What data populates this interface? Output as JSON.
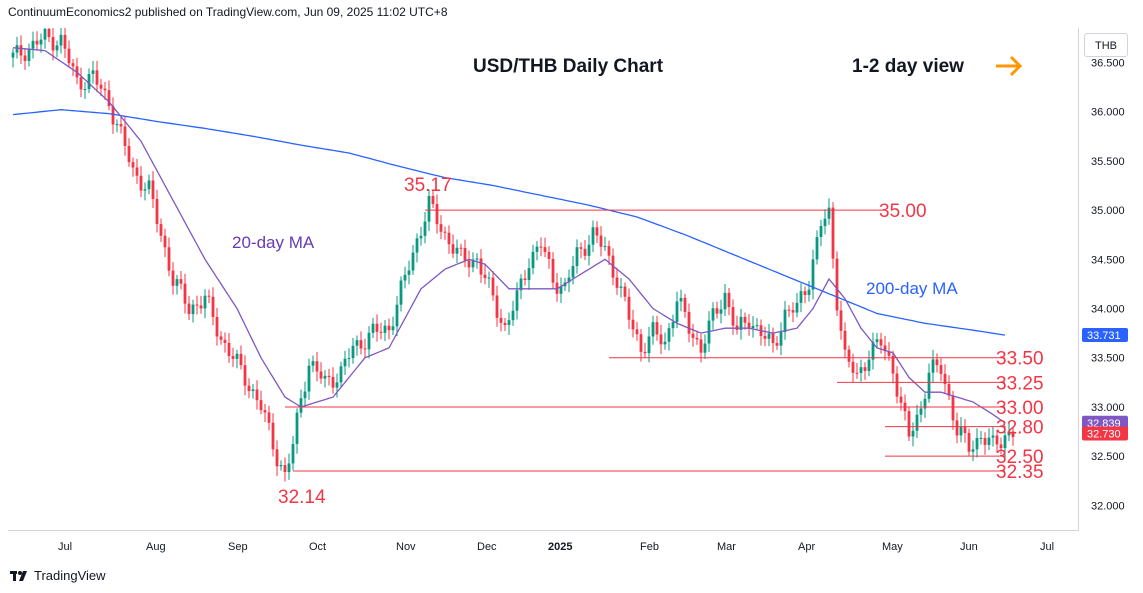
{
  "header": {
    "publisher_text": "ContinuumEconomics2 published on TradingView.com, Jun 09, 2025 11:02 UTC+8"
  },
  "symbol": "THB",
  "brand": {
    "name": "TradingView"
  },
  "chart_data": {
    "type": "candlestick",
    "title": "USD/THB Daily Chart",
    "view_label": "1-2 day view",
    "y_axis": {
      "ylim": [
        31.75,
        36.85
      ],
      "ticks": [
        "36.500",
        "36.000",
        "35.500",
        "35.000",
        "34.500",
        "34.000",
        "33.500",
        "33.000",
        "32.500",
        "32.000"
      ]
    },
    "x_axis": {
      "tick_labels": [
        "Jul",
        "Aug",
        "Sep",
        "Oct",
        "Nov",
        "Dec",
        "2025",
        "Feb",
        "Mar",
        "Apr",
        "May",
        "Jun",
        "Jul"
      ]
    },
    "price_badges": [
      {
        "label": "33.731",
        "value": 33.731,
        "color": "#2962ff"
      },
      {
        "label": "32.839",
        "value": 32.839,
        "color": "#7e57c2"
      },
      {
        "label": "32.730",
        "value": 32.73,
        "color": "#f23645"
      }
    ],
    "levels": [
      {
        "label": "35.00",
        "value": 35.0
      },
      {
        "label": "33.50",
        "value": 33.5
      },
      {
        "label": "33.25",
        "value": 33.25
      },
      {
        "label": "33.00",
        "value": 33.0
      },
      {
        "label": "32.80",
        "value": 32.8
      },
      {
        "label": "32.50",
        "value": 32.5
      },
      {
        "label": "32.35",
        "value": 32.35
      }
    ],
    "annotations": [
      {
        "label": "35.17",
        "value": 35.17
      },
      {
        "label": "32.14",
        "value": 32.14
      },
      {
        "label": "20-day MA"
      },
      {
        "label": "200-day MA"
      }
    ],
    "anchors": [
      [
        0,
        36.55
      ],
      [
        8,
        36.75
      ],
      [
        12,
        36.72
      ],
      [
        16,
        36.3
      ],
      [
        20,
        36.35
      ],
      [
        24,
        36.1
      ],
      [
        30,
        35.4
      ],
      [
        34,
        35.2
      ],
      [
        40,
        34.3
      ],
      [
        44,
        34.0
      ],
      [
        48,
        34.1
      ],
      [
        52,
        33.7
      ],
      [
        58,
        33.3
      ],
      [
        62,
        33.0
      ],
      [
        66,
        32.5
      ],
      [
        68,
        32.3
      ],
      [
        70,
        32.6
      ],
      [
        72,
        33.1
      ],
      [
        74,
        33.45
      ],
      [
        78,
        33.25
      ],
      [
        82,
        33.35
      ],
      [
        85,
        33.6
      ],
      [
        90,
        33.75
      ],
      [
        94,
        33.8
      ],
      [
        98,
        34.3
      ],
      [
        101,
        34.7
      ],
      [
        104,
        35.05
      ],
      [
        108,
        34.75
      ],
      [
        112,
        34.5
      ],
      [
        116,
        34.5
      ],
      [
        120,
        34.1
      ],
      [
        123,
        33.8
      ],
      [
        126,
        34.1
      ],
      [
        129,
        34.5
      ],
      [
        132,
        34.65
      ],
      [
        135,
        34.3
      ],
      [
        138,
        34.2
      ],
      [
        141,
        34.55
      ],
      [
        145,
        34.75
      ],
      [
        148,
        34.6
      ],
      [
        151,
        34.3
      ],
      [
        154,
        33.9
      ],
      [
        157,
        33.6
      ],
      [
        160,
        33.75
      ],
      [
        163,
        33.65
      ],
      [
        166,
        34.1
      ],
      [
        169,
        33.8
      ],
      [
        172,
        33.6
      ],
      [
        175,
        33.9
      ],
      [
        178,
        34.15
      ],
      [
        181,
        33.75
      ],
      [
        184,
        33.9
      ],
      [
        187,
        33.75
      ],
      [
        190,
        33.6
      ],
      [
        193,
        33.95
      ],
      [
        196,
        34.0
      ],
      [
        199,
        34.3
      ],
      [
        202,
        34.85
      ],
      [
        204,
        34.95
      ],
      [
        206,
        34.1
      ],
      [
        208,
        33.5
      ],
      [
        211,
        33.3
      ],
      [
        214,
        33.55
      ],
      [
        217,
        33.65
      ],
      [
        220,
        33.4
      ],
      [
        222,
        33.0
      ],
      [
        224,
        32.7
      ],
      [
        227,
        33.0
      ],
      [
        229,
        33.35
      ],
      [
        232,
        33.4
      ],
      [
        234,
        33.1
      ],
      [
        236,
        32.75
      ],
      [
        239,
        32.6
      ],
      [
        242,
        32.7
      ],
      [
        245,
        32.6
      ],
      [
        248,
        32.72
      ],
      [
        250,
        32.73
      ]
    ],
    "ma20": [
      [
        0,
        36.65
      ],
      [
        8,
        36.62
      ],
      [
        16,
        36.4
      ],
      [
        24,
        36.1
      ],
      [
        32,
        35.7
      ],
      [
        40,
        35.1
      ],
      [
        48,
        34.5
      ],
      [
        56,
        34.0
      ],
      [
        62,
        33.5
      ],
      [
        68,
        33.1
      ],
      [
        72,
        33.0
      ],
      [
        76,
        33.05
      ],
      [
        80,
        33.1
      ],
      [
        84,
        33.3
      ],
      [
        88,
        33.5
      ],
      [
        94,
        33.6
      ],
      [
        98,
        33.9
      ],
      [
        102,
        34.2
      ],
      [
        108,
        34.4
      ],
      [
        114,
        34.5
      ],
      [
        118,
        34.45
      ],
      [
        124,
        34.2
      ],
      [
        130,
        34.2
      ],
      [
        136,
        34.2
      ],
      [
        142,
        34.35
      ],
      [
        148,
        34.5
      ],
      [
        154,
        34.3
      ],
      [
        160,
        34.0
      ],
      [
        166,
        33.85
      ],
      [
        172,
        33.75
      ],
      [
        178,
        33.8
      ],
      [
        184,
        33.8
      ],
      [
        190,
        33.75
      ],
      [
        196,
        33.8
      ],
      [
        200,
        34.0
      ],
      [
        204,
        34.3
      ],
      [
        208,
        34.1
      ],
      [
        212,
        33.8
      ],
      [
        216,
        33.6
      ],
      [
        220,
        33.55
      ],
      [
        224,
        33.3
      ],
      [
        228,
        33.15
      ],
      [
        232,
        33.15
      ],
      [
        236,
        33.1
      ],
      [
        240,
        33.05
      ],
      [
        244,
        32.95
      ],
      [
        248,
        32.84
      ]
    ],
    "ma200": [
      [
        0,
        35.97
      ],
      [
        12,
        36.02
      ],
      [
        24,
        35.98
      ],
      [
        36,
        35.9
      ],
      [
        48,
        35.83
      ],
      [
        60,
        35.75
      ],
      [
        72,
        35.66
      ],
      [
        84,
        35.58
      ],
      [
        96,
        35.45
      ],
      [
        108,
        35.33
      ],
      [
        120,
        35.25
      ],
      [
        132,
        35.15
      ],
      [
        144,
        35.05
      ],
      [
        156,
        34.93
      ],
      [
        168,
        34.75
      ],
      [
        180,
        34.55
      ],
      [
        192,
        34.35
      ],
      [
        204,
        34.15
      ],
      [
        216,
        33.95
      ],
      [
        228,
        33.85
      ],
      [
        240,
        33.78
      ],
      [
        248,
        33.73
      ]
    ]
  }
}
